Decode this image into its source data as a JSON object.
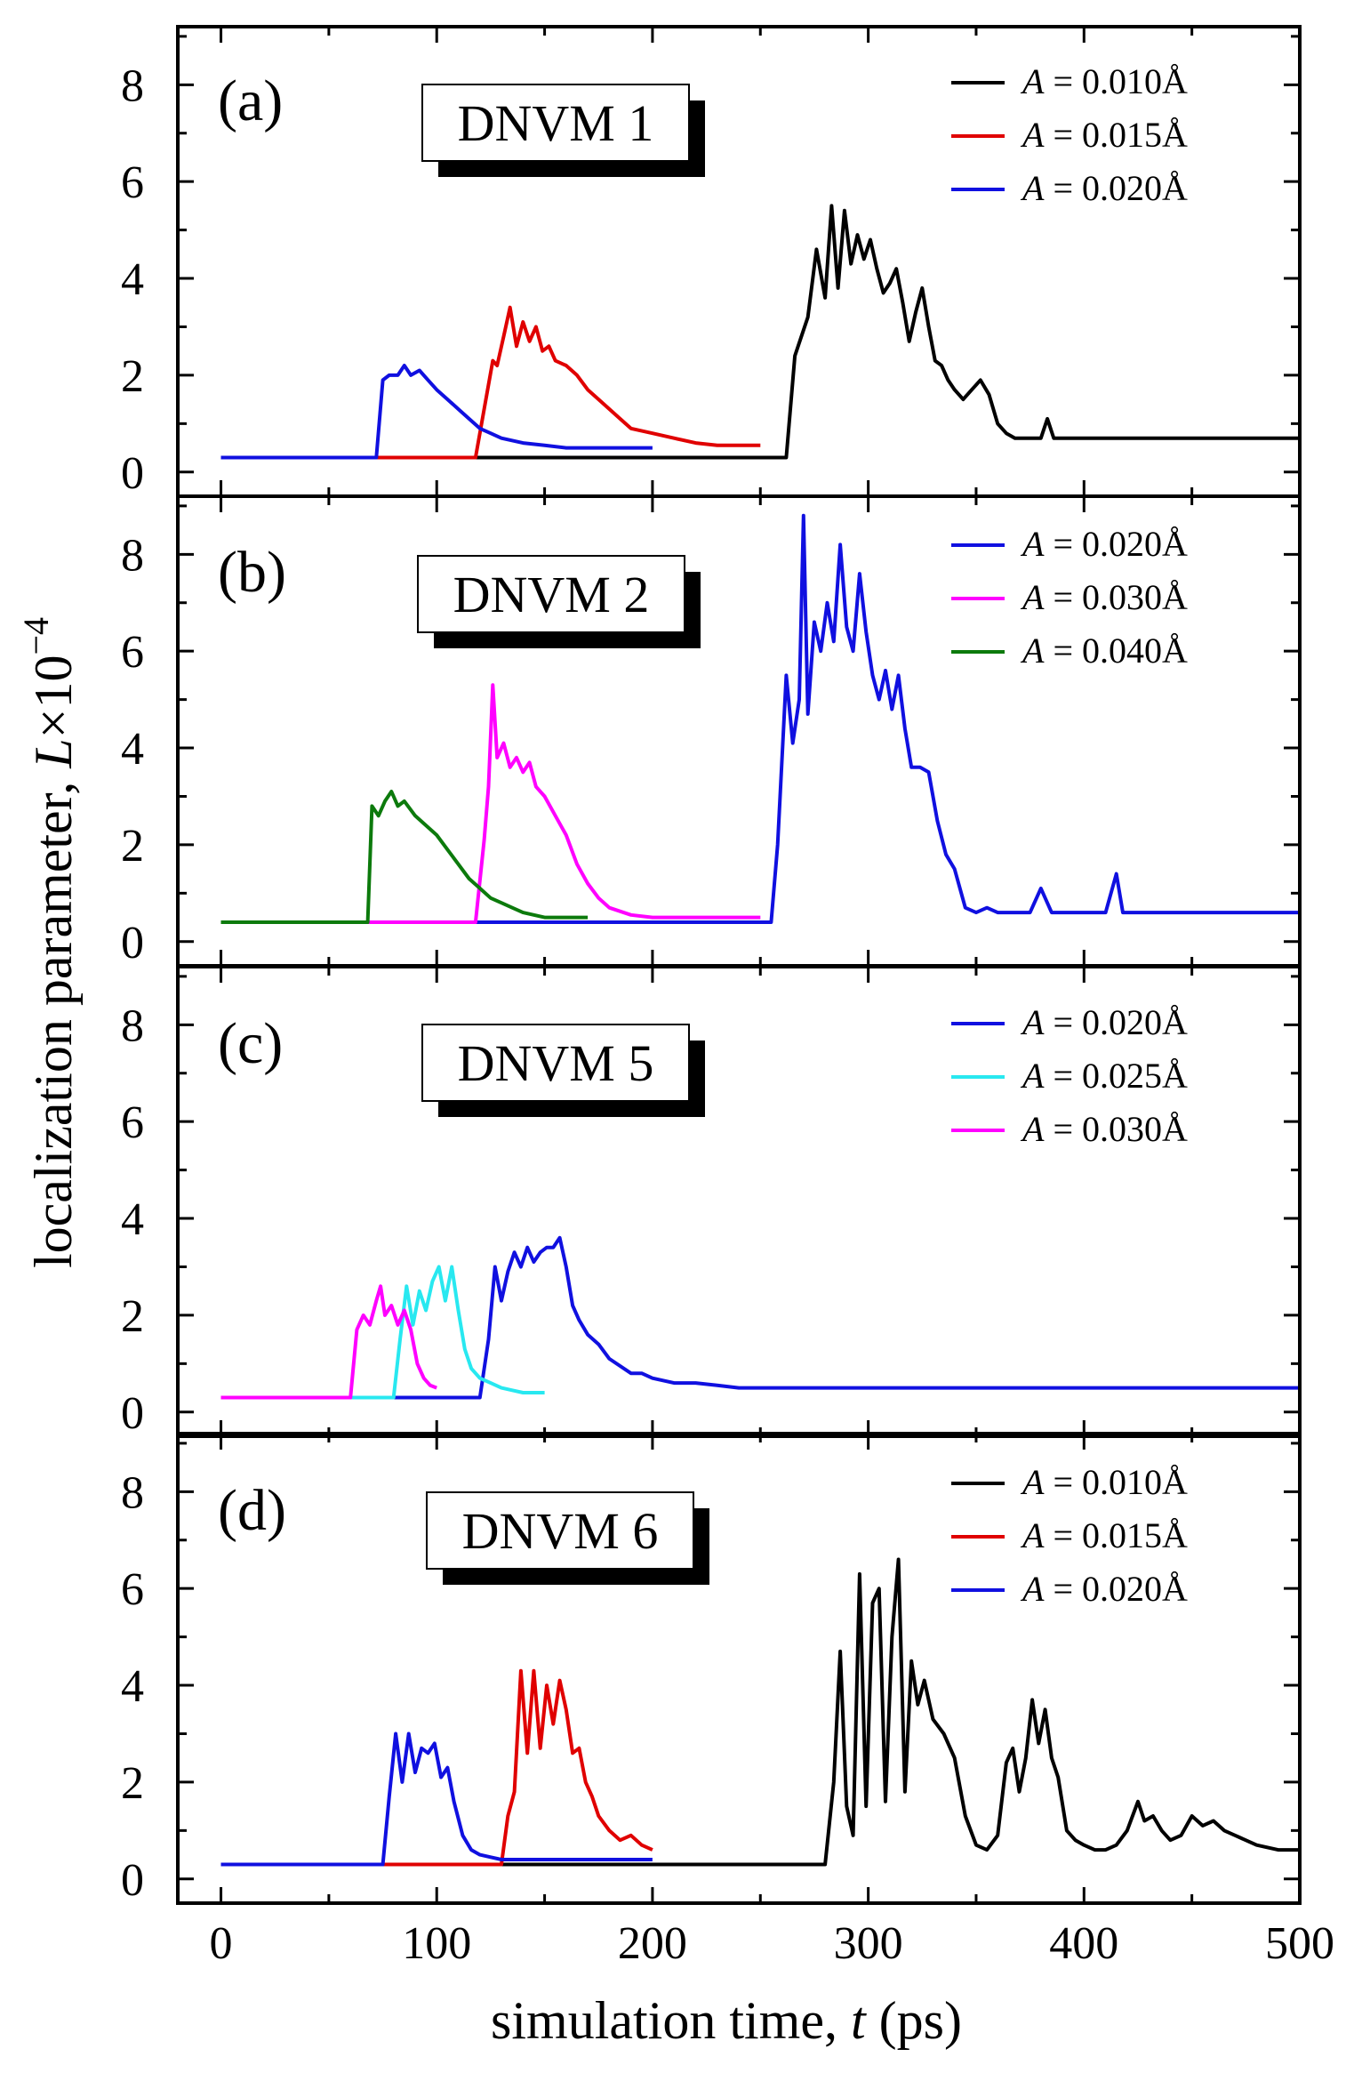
{
  "chart_data": [
    {
      "type": "line",
      "panel_label": "(a)",
      "title": "DNVM 1",
      "xlim": [
        -20,
        500
      ],
      "ylim": [
        -0.5,
        9.2
      ],
      "yticks": [
        "0",
        "2",
        "4",
        "6",
        "8"
      ],
      "series": [
        {
          "name": "A = 0.010Å",
          "amp": "0.010Å",
          "color": "#000000",
          "x": [
            0,
            262,
            266,
            272,
            276,
            280,
            283,
            286,
            289,
            292,
            295,
            298,
            301,
            304,
            307,
            310,
            313,
            316,
            319,
            322,
            325,
            328,
            331,
            334,
            337,
            340,
            344,
            348,
            352,
            356,
            360,
            364,
            368,
            372,
            376,
            380,
            383,
            386,
            390,
            400,
            420,
            450,
            480,
            500
          ],
          "y": [
            0.3,
            0.3,
            2.4,
            3.2,
            4.6,
            3.6,
            5.5,
            3.8,
            5.4,
            4.3,
            4.9,
            4.4,
            4.8,
            4.2,
            3.7,
            3.9,
            4.2,
            3.5,
            2.7,
            3.3,
            3.8,
            3.0,
            2.3,
            2.2,
            1.9,
            1.7,
            1.5,
            1.7,
            1.9,
            1.6,
            1.0,
            0.8,
            0.7,
            0.7,
            0.7,
            0.7,
            1.1,
            0.7,
            0.7,
            0.7,
            0.7,
            0.7,
            0.7,
            0.7
          ]
        },
        {
          "name": "A = 0.015Å",
          "amp": "0.015Å",
          "color": "#e00000",
          "x": [
            0,
            118,
            122,
            126,
            128,
            131,
            134,
            137,
            140,
            143,
            146,
            149,
            152,
            155,
            160,
            165,
            170,
            175,
            180,
            185,
            190,
            200,
            210,
            220,
            230,
            250
          ],
          "y": [
            0.3,
            0.3,
            1.3,
            2.3,
            2.2,
            2.8,
            3.4,
            2.6,
            3.1,
            2.7,
            3.0,
            2.5,
            2.6,
            2.3,
            2.2,
            2.0,
            1.7,
            1.5,
            1.3,
            1.1,
            0.9,
            0.8,
            0.7,
            0.6,
            0.55,
            0.55
          ]
        },
        {
          "name": "A = 0.020Å",
          "amp": "0.020Å",
          "color": "#1010e0",
          "x": [
            0,
            72,
            75,
            78,
            82,
            85,
            88,
            92,
            96,
            100,
            105,
            110,
            115,
            120,
            125,
            130,
            140,
            150,
            160,
            170,
            180,
            190,
            200
          ],
          "y": [
            0.3,
            0.3,
            1.9,
            2.0,
            2.0,
            2.2,
            2.0,
            2.1,
            1.9,
            1.7,
            1.5,
            1.3,
            1.1,
            0.9,
            0.8,
            0.7,
            0.6,
            0.55,
            0.5,
            0.5,
            0.5,
            0.5,
            0.5
          ]
        }
      ]
    },
    {
      "type": "line",
      "panel_label": "(b)",
      "title": "DNVM 2",
      "xlim": [
        -20,
        500
      ],
      "ylim": [
        -0.5,
        9.2
      ],
      "yticks": [
        "0",
        "2",
        "4",
        "6",
        "8"
      ],
      "series": [
        {
          "name": "A = 0.020Å",
          "amp": "0.020Å",
          "color": "#1010e0",
          "x": [
            0,
            255,
            258,
            262,
            265,
            268,
            270,
            272,
            275,
            278,
            281,
            284,
            287,
            290,
            293,
            296,
            299,
            302,
            305,
            308,
            311,
            314,
            317,
            320,
            324,
            328,
            332,
            336,
            340,
            345,
            350,
            355,
            360,
            365,
            370,
            375,
            380,
            385,
            390,
            400,
            410,
            415,
            418,
            422,
            430,
            450,
            480,
            500
          ],
          "y": [
            0.4,
            0.4,
            2.0,
            5.5,
            4.1,
            5.0,
            8.8,
            4.7,
            6.6,
            6.0,
            7.0,
            6.2,
            8.2,
            6.5,
            6.0,
            7.6,
            6.4,
            5.5,
            5.0,
            5.6,
            4.8,
            5.5,
            4.4,
            3.6,
            3.6,
            3.5,
            2.5,
            1.8,
            1.5,
            0.7,
            0.6,
            0.7,
            0.6,
            0.6,
            0.6,
            0.6,
            1.1,
            0.6,
            0.6,
            0.6,
            0.6,
            1.4,
            0.6,
            0.6,
            0.6,
            0.6,
            0.6,
            0.6
          ]
        },
        {
          "name": "A = 0.030Å",
          "amp": "0.030Å",
          "color": "#ff00ff",
          "x": [
            0,
            118,
            122,
            124,
            126,
            128,
            131,
            134,
            137,
            140,
            143,
            146,
            150,
            155,
            160,
            165,
            170,
            175,
            180,
            190,
            200,
            210,
            220,
            230,
            250
          ],
          "y": [
            0.4,
            0.4,
            2.1,
            3.2,
            5.3,
            3.8,
            4.1,
            3.6,
            3.8,
            3.5,
            3.7,
            3.2,
            3.0,
            2.6,
            2.2,
            1.6,
            1.2,
            0.9,
            0.7,
            0.55,
            0.5,
            0.5,
            0.5,
            0.5,
            0.5
          ]
        },
        {
          "name": "A = 0.040Å",
          "amp": "0.040Å",
          "color": "#0c7a0c",
          "x": [
            0,
            68,
            70,
            73,
            76,
            79,
            82,
            85,
            90,
            95,
            100,
            105,
            110,
            115,
            120,
            125,
            130,
            135,
            140,
            145,
            150,
            155,
            160,
            170
          ],
          "y": [
            0.4,
            0.4,
            2.8,
            2.6,
            2.9,
            3.1,
            2.8,
            2.9,
            2.6,
            2.4,
            2.2,
            1.9,
            1.6,
            1.3,
            1.1,
            0.9,
            0.8,
            0.7,
            0.6,
            0.55,
            0.5,
            0.5,
            0.5,
            0.5
          ]
        }
      ]
    },
    {
      "type": "line",
      "panel_label": "(c)",
      "title": "DNVM 5",
      "xlim": [
        -20,
        500
      ],
      "ylim": [
        -0.5,
        9.2
      ],
      "yticks": [
        "0",
        "2",
        "4",
        "6",
        "8"
      ],
      "series": [
        {
          "name": "A = 0.020Å",
          "amp": "0.020Å",
          "color": "#1010e0",
          "x": [
            0,
            120,
            124,
            127,
            130,
            133,
            136,
            139,
            142,
            145,
            148,
            151,
            154,
            157,
            160,
            163,
            166,
            170,
            175,
            180,
            190,
            195,
            200,
            210,
            220,
            230,
            240,
            260,
            300,
            400,
            500
          ],
          "y": [
            0.3,
            0.3,
            1.5,
            3.0,
            2.3,
            2.9,
            3.3,
            3.0,
            3.4,
            3.1,
            3.3,
            3.4,
            3.4,
            3.6,
            3.0,
            2.2,
            1.9,
            1.6,
            1.4,
            1.1,
            0.8,
            0.8,
            0.7,
            0.6,
            0.6,
            0.55,
            0.5,
            0.5,
            0.5,
            0.5,
            0.5
          ]
        },
        {
          "name": "A = 0.025Å",
          "amp": "0.025Å",
          "color": "#28e8f0",
          "x": [
            0,
            80,
            83,
            86,
            89,
            92,
            95,
            98,
            101,
            104,
            107,
            110,
            113,
            116,
            120,
            125,
            130,
            135,
            140,
            150
          ],
          "y": [
            0.3,
            0.3,
            1.5,
            2.6,
            1.8,
            2.5,
            2.1,
            2.7,
            3.0,
            2.3,
            3.0,
            2.1,
            1.3,
            0.9,
            0.7,
            0.6,
            0.5,
            0.45,
            0.4,
            0.4
          ]
        },
        {
          "name": "A = 0.030Å",
          "amp": "0.030Å",
          "color": "#ff00ff",
          "x": [
            0,
            60,
            63,
            66,
            69,
            72,
            74,
            76,
            79,
            82,
            85,
            88,
            91,
            94,
            97,
            100
          ],
          "y": [
            0.3,
            0.3,
            1.7,
            2.0,
            1.8,
            2.3,
            2.6,
            2.0,
            2.2,
            1.8,
            2.1,
            1.7,
            1.0,
            0.7,
            0.55,
            0.5
          ]
        }
      ]
    },
    {
      "type": "line",
      "panel_label": "(d)",
      "title": "DNVM 6",
      "xlim": [
        -20,
        500
      ],
      "ylim": [
        -0.5,
        9.2
      ],
      "yticks": [
        "0",
        "2",
        "4",
        "6",
        "8"
      ],
      "series": [
        {
          "name": "A = 0.010Å",
          "amp": "0.010Å",
          "color": "#000000",
          "x": [
            0,
            280,
            284,
            287,
            290,
            293,
            296,
            299,
            302,
            305,
            308,
            311,
            314,
            317,
            320,
            323,
            326,
            330,
            335,
            340,
            345,
            350,
            355,
            360,
            364,
            367,
            370,
            373,
            376,
            379,
            382,
            385,
            388,
            392,
            396,
            400,
            405,
            410,
            415,
            420,
            425,
            428,
            432,
            436,
            440,
            445,
            450,
            455,
            460,
            465,
            470,
            480,
            490,
            500
          ],
          "y": [
            0.3,
            0.3,
            2.0,
            4.7,
            1.5,
            0.9,
            6.3,
            1.5,
            5.7,
            6.0,
            1.6,
            5.0,
            6.6,
            1.8,
            4.5,
            3.6,
            4.1,
            3.3,
            3.0,
            2.5,
            1.3,
            0.7,
            0.6,
            0.9,
            2.4,
            2.7,
            1.8,
            2.5,
            3.7,
            2.8,
            3.5,
            2.5,
            2.1,
            1.0,
            0.8,
            0.7,
            0.6,
            0.6,
            0.7,
            1.0,
            1.6,
            1.2,
            1.3,
            1.0,
            0.8,
            0.9,
            1.3,
            1.1,
            1.2,
            1.0,
            0.9,
            0.7,
            0.6,
            0.6
          ]
        },
        {
          "name": "A = 0.015Å",
          "amp": "0.015Å",
          "color": "#e00000",
          "x": [
            0,
            130,
            133,
            136,
            139,
            142,
            145,
            148,
            151,
            154,
            157,
            160,
            163,
            166,
            169,
            172,
            175,
            180,
            185,
            190,
            195,
            200
          ],
          "y": [
            0.3,
            0.3,
            1.3,
            1.8,
            4.3,
            2.6,
            4.3,
            2.7,
            4.0,
            3.2,
            4.1,
            3.5,
            2.6,
            2.7,
            2.0,
            1.7,
            1.3,
            1.0,
            0.8,
            0.9,
            0.7,
            0.6
          ]
        },
        {
          "name": "A = 0.020Å",
          "amp": "0.020Å",
          "color": "#1010e0",
          "x": [
            0,
            75,
            78,
            81,
            84,
            87,
            90,
            93,
            96,
            99,
            102,
            105,
            108,
            112,
            116,
            120,
            125,
            130,
            140,
            150,
            170,
            200
          ],
          "y": [
            0.3,
            0.3,
            1.7,
            3.0,
            2.0,
            3.0,
            2.2,
            2.7,
            2.6,
            2.8,
            2.1,
            2.3,
            1.6,
            0.9,
            0.6,
            0.5,
            0.45,
            0.4,
            0.4,
            0.4,
            0.4,
            0.4
          ]
        }
      ]
    }
  ],
  "axes": {
    "xlabel_prefix": "simulation time, ",
    "xlabel_var": "t",
    "xlabel_unit": " (ps)",
    "xticks": [
      "0",
      "100",
      "200",
      "300",
      "400",
      "500"
    ],
    "ylabel_prefix": "localization parameter, ",
    "ylabel_var": "L",
    "ylabel_times": "×10",
    "ylabel_exp": "−4"
  },
  "legend_var": "A",
  "legend_eq": " = "
}
